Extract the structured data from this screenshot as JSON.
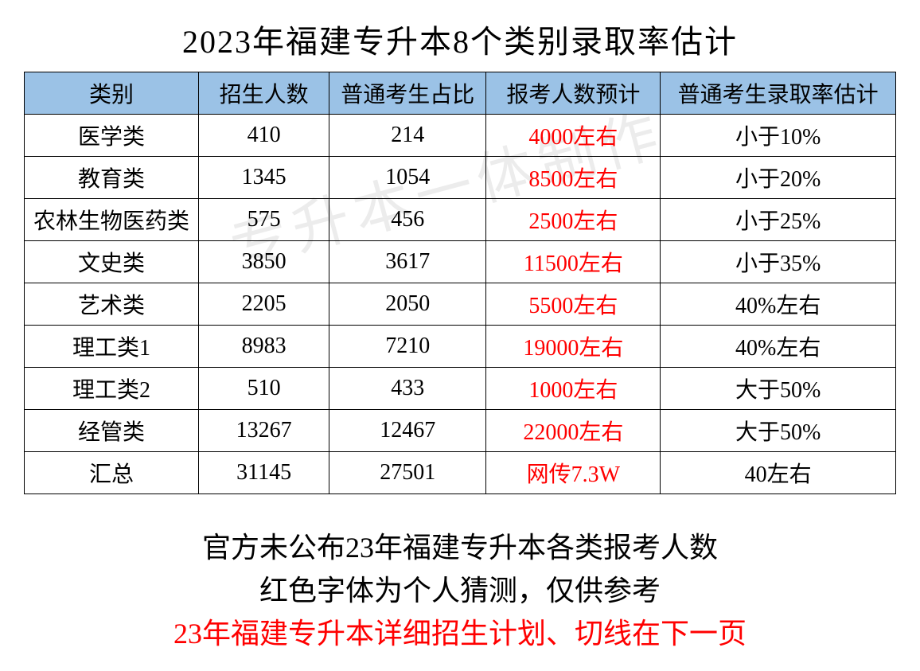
{
  "title": "2023年福建专升本8个类别录取率估计",
  "table": {
    "headers": {
      "category": "类别",
      "enrollment": "招生人数",
      "ratio": "普通考生占比",
      "expected": "报考人数预计",
      "rate": "普通考生录取率估计"
    },
    "header_bg_color": "#9BC2E6",
    "border_color": "#000000",
    "rows": [
      {
        "category": "医学类",
        "enrollment": "410",
        "ratio": "214",
        "expected": "4000左右",
        "rate": "小于10%"
      },
      {
        "category": "教育类",
        "enrollment": "1345",
        "ratio": "1054",
        "expected": "8500左右",
        "rate": "小于20%"
      },
      {
        "category": "农林生物医药类",
        "enrollment": "575",
        "ratio": "456",
        "expected": "2500左右",
        "rate": "小于25%"
      },
      {
        "category": "文史类",
        "enrollment": "3850",
        "ratio": "3617",
        "expected": "11500左右",
        "rate": "小于35%"
      },
      {
        "category": "艺术类",
        "enrollment": "2205",
        "ratio": "2050",
        "expected": "5500左右",
        "rate": "40%左右"
      },
      {
        "category": "理工类1",
        "enrollment": "8983",
        "ratio": "7210",
        "expected": "19000左右",
        "rate": "40%左右"
      },
      {
        "category": "理工类2",
        "enrollment": "510",
        "ratio": "433",
        "expected": "1000左右",
        "rate": "大于50%"
      },
      {
        "category": "经管类",
        "enrollment": "13267",
        "ratio": "12467",
        "expected": "22000左右",
        "rate": "大于50%"
      },
      {
        "category": "汇总",
        "enrollment": "31145",
        "ratio": "27501",
        "expected": "网传7.3W",
        "rate": "40左右"
      }
    ],
    "expected_color": "#ff0000"
  },
  "notes": {
    "line1": "官方未公布23年福建专升本各类报考人数",
    "line2": "红色字体为个人猜测，仅供参考",
    "line3": "23年福建专升本详细招生计划、切线在下一页",
    "line3_color": "#ff0000"
  },
  "watermark_text": "专升本一体制作"
}
